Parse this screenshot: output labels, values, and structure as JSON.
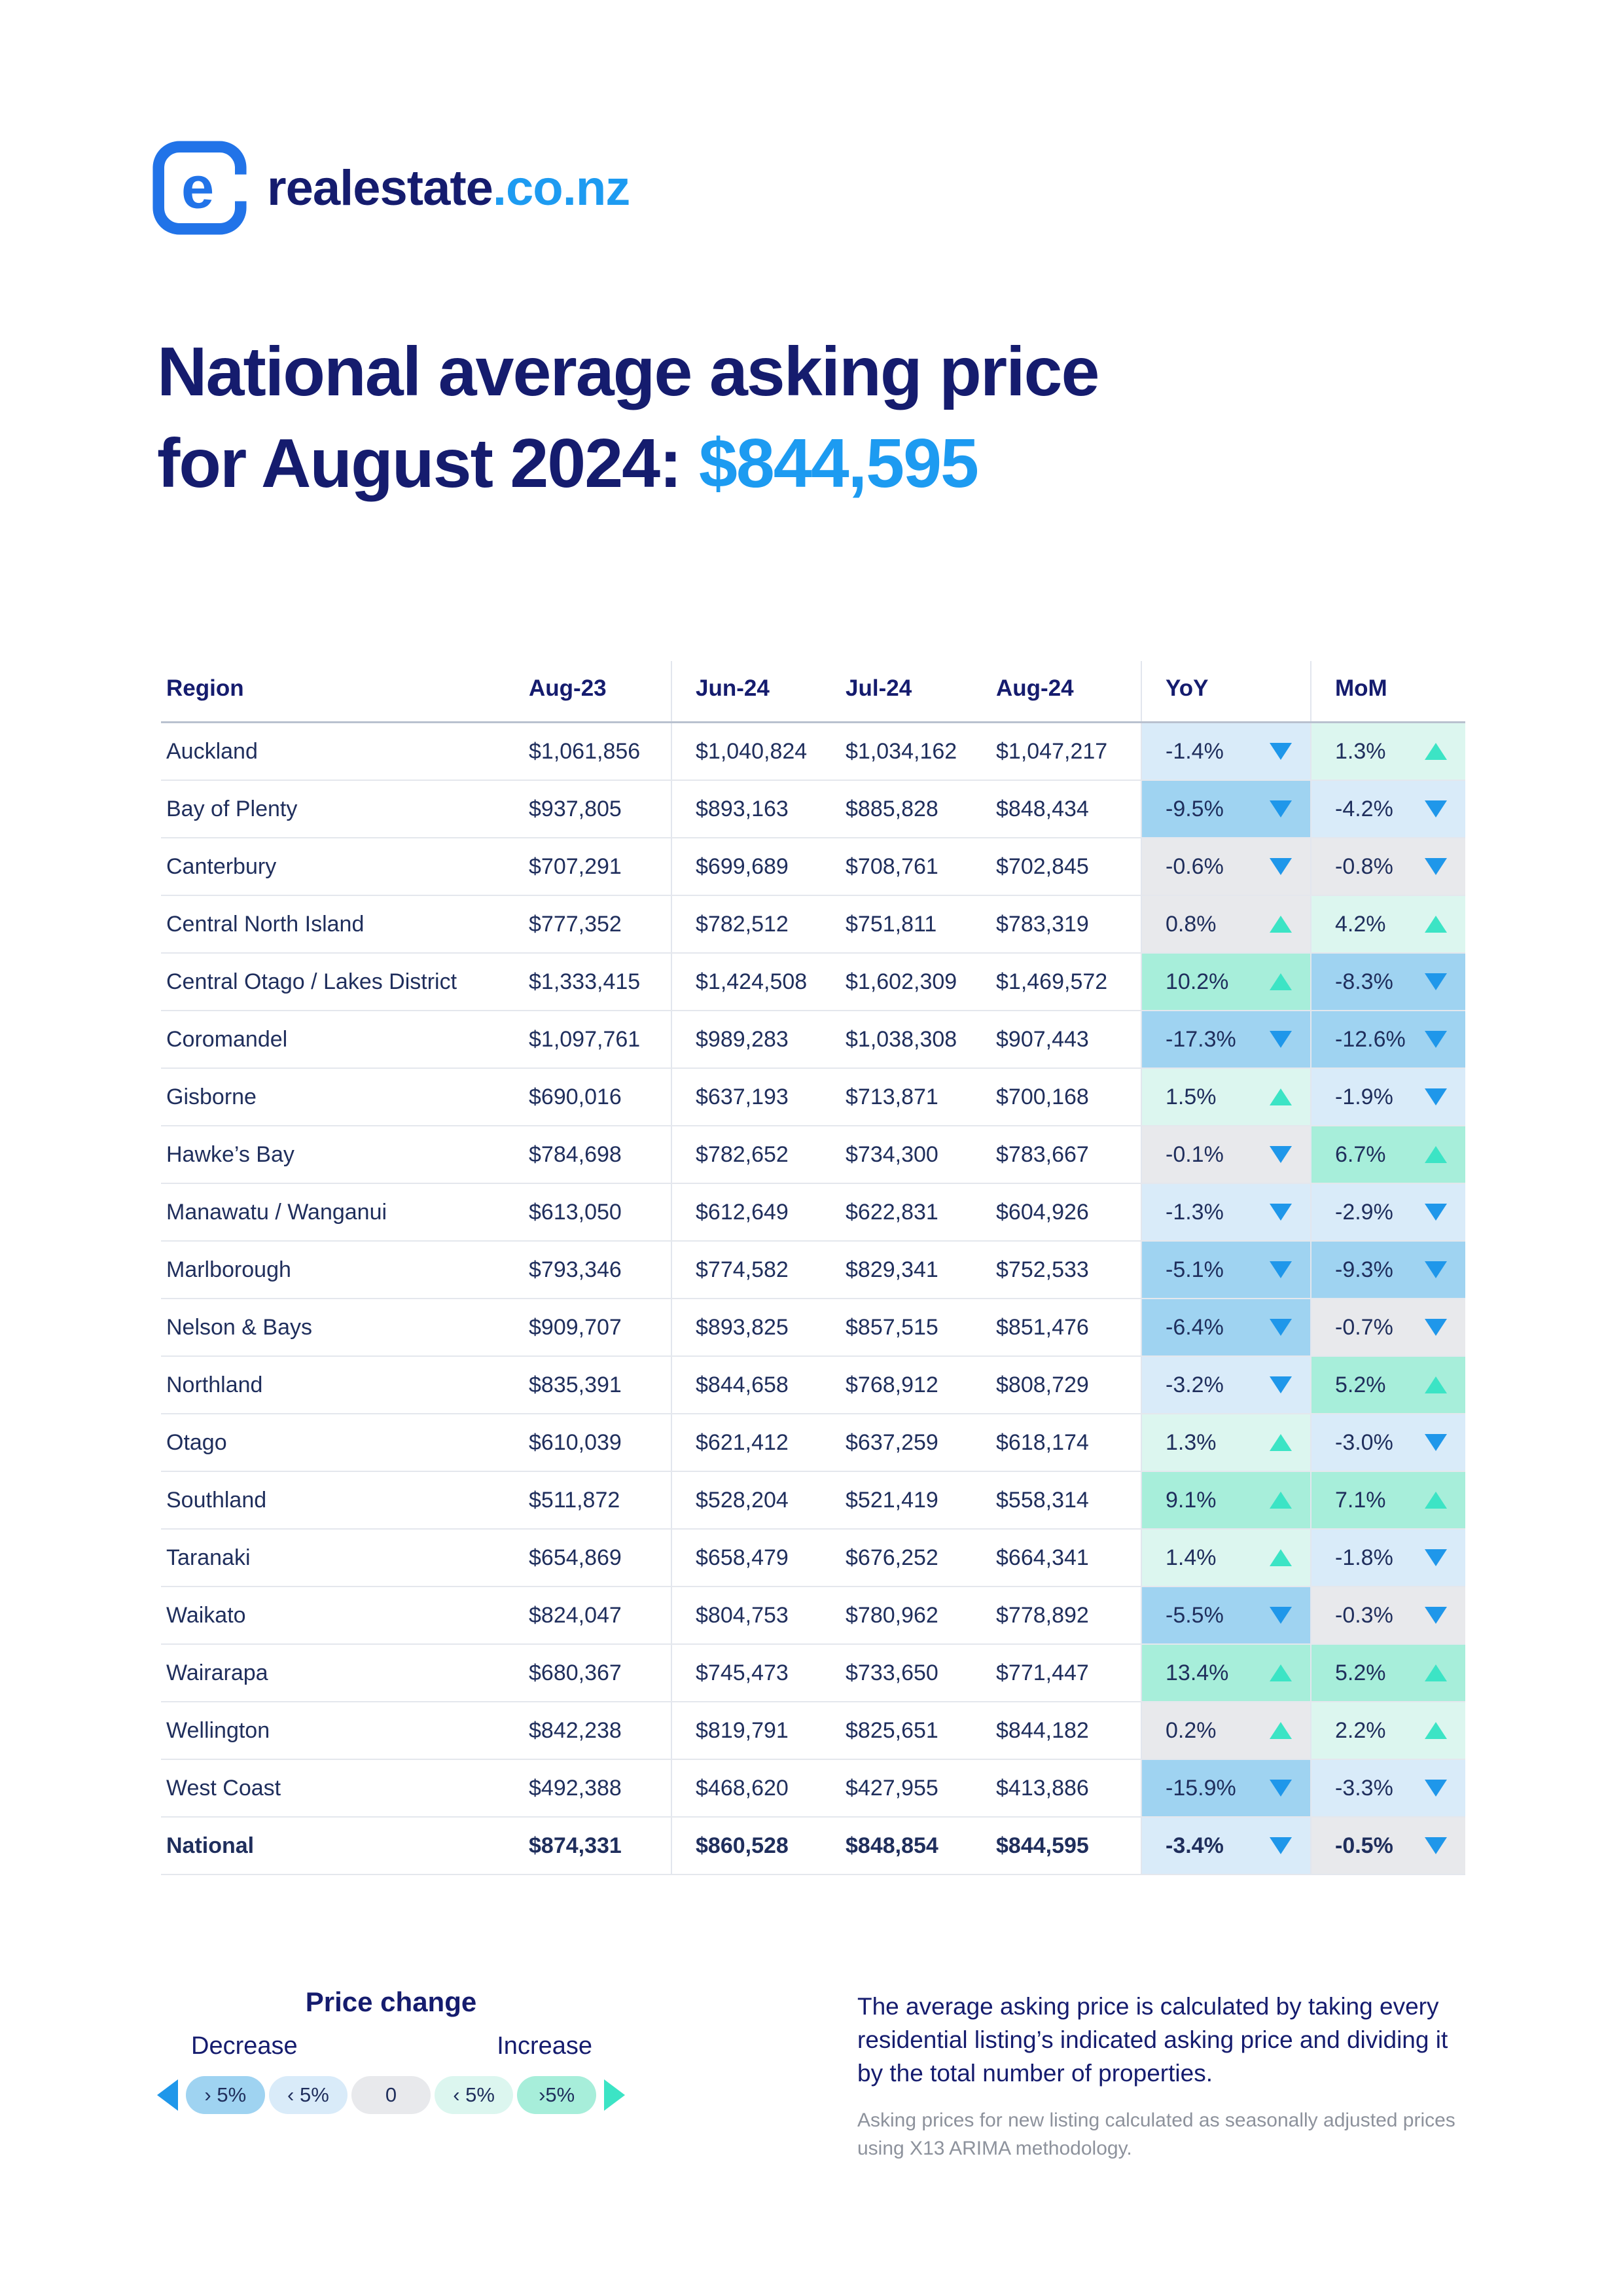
{
  "brand": {
    "name_main": "realestate",
    "name_suffix": ".co.nz"
  },
  "title": {
    "line1": "National average asking price",
    "line2_prefix": "for August 2024: ",
    "line2_price": "$844,595"
  },
  "table": {
    "columns": [
      "Region",
      "Aug-23",
      "Jun-24",
      "Jul-24",
      "Aug-24",
      "YoY",
      "MoM"
    ],
    "rows": [
      {
        "region": "Auckland",
        "aug23": "$1,061,856",
        "jun24": "$1,040,824",
        "jul24": "$1,034,162",
        "aug24": "$1,047,217",
        "yoy": {
          "value": "-1.4%",
          "direction": "down",
          "bucket": "dec-light"
        },
        "mom": {
          "value": "1.3%",
          "direction": "up",
          "bucket": "inc-light"
        }
      },
      {
        "region": "Bay of Plenty",
        "aug23": "$937,805",
        "jun24": "$893,163",
        "jul24": "$885,828",
        "aug24": "$848,434",
        "yoy": {
          "value": "-9.5%",
          "direction": "down",
          "bucket": "dec-strong"
        },
        "mom": {
          "value": "-4.2%",
          "direction": "down",
          "bucket": "dec-light"
        }
      },
      {
        "region": "Canterbury",
        "aug23": "$707,291",
        "jun24": "$699,689",
        "jul24": "$708,761",
        "aug24": "$702,845",
        "yoy": {
          "value": "-0.6%",
          "direction": "down",
          "bucket": "neutral"
        },
        "mom": {
          "value": "-0.8%",
          "direction": "down",
          "bucket": "neutral"
        }
      },
      {
        "region": "Central North Island",
        "aug23": "$777,352",
        "jun24": "$782,512",
        "jul24": "$751,811",
        "aug24": "$783,319",
        "yoy": {
          "value": "0.8%",
          "direction": "up",
          "bucket": "neutral"
        },
        "mom": {
          "value": "4.2%",
          "direction": "up",
          "bucket": "inc-light"
        }
      },
      {
        "region": "Central Otago / Lakes District",
        "aug23": "$1,333,415",
        "jun24": "$1,424,508",
        "jul24": "$1,602,309",
        "aug24": "$1,469,572",
        "yoy": {
          "value": "10.2%",
          "direction": "up",
          "bucket": "inc-strong"
        },
        "mom": {
          "value": "-8.3%",
          "direction": "down",
          "bucket": "dec-strong"
        }
      },
      {
        "region": "Coromandel",
        "aug23": "$1,097,761",
        "jun24": "$989,283",
        "jul24": "$1,038,308",
        "aug24": "$907,443",
        "yoy": {
          "value": "-17.3%",
          "direction": "down",
          "bucket": "dec-strong"
        },
        "mom": {
          "value": "-12.6%",
          "direction": "down",
          "bucket": "dec-strong"
        }
      },
      {
        "region": "Gisborne",
        "aug23": "$690,016",
        "jun24": "$637,193",
        "jul24": "$713,871",
        "aug24": "$700,168",
        "yoy": {
          "value": "1.5%",
          "direction": "up",
          "bucket": "inc-light"
        },
        "mom": {
          "value": "-1.9%",
          "direction": "down",
          "bucket": "dec-light"
        }
      },
      {
        "region": "Hawke’s Bay",
        "aug23": "$784,698",
        "jun24": "$782,652",
        "jul24": "$734,300",
        "aug24": "$783,667",
        "yoy": {
          "value": "-0.1%",
          "direction": "down",
          "bucket": "neutral"
        },
        "mom": {
          "value": "6.7%",
          "direction": "up",
          "bucket": "inc-strong"
        }
      },
      {
        "region": "Manawatu / Wanganui",
        "aug23": "$613,050",
        "jun24": "$612,649",
        "jul24": "$622,831",
        "aug24": "$604,926",
        "yoy": {
          "value": "-1.3%",
          "direction": "down",
          "bucket": "dec-light"
        },
        "mom": {
          "value": "-2.9%",
          "direction": "down",
          "bucket": "dec-light"
        }
      },
      {
        "region": "Marlborough",
        "aug23": "$793,346",
        "jun24": "$774,582",
        "jul24": "$829,341",
        "aug24": "$752,533",
        "yoy": {
          "value": "-5.1%",
          "direction": "down",
          "bucket": "dec-strong"
        },
        "mom": {
          "value": "-9.3%",
          "direction": "down",
          "bucket": "dec-strong"
        }
      },
      {
        "region": "Nelson & Bays",
        "aug23": "$909,707",
        "jun24": "$893,825",
        "jul24": "$857,515",
        "aug24": "$851,476",
        "yoy": {
          "value": "-6.4%",
          "direction": "down",
          "bucket": "dec-strong"
        },
        "mom": {
          "value": "-0.7%",
          "direction": "down",
          "bucket": "neutral"
        }
      },
      {
        "region": "Northland",
        "aug23": "$835,391",
        "jun24": "$844,658",
        "jul24": "$768,912",
        "aug24": "$808,729",
        "yoy": {
          "value": "-3.2%",
          "direction": "down",
          "bucket": "dec-light"
        },
        "mom": {
          "value": "5.2%",
          "direction": "up",
          "bucket": "inc-strong"
        }
      },
      {
        "region": "Otago",
        "aug23": "$610,039",
        "jun24": "$621,412",
        "jul24": "$637,259",
        "aug24": "$618,174",
        "yoy": {
          "value": "1.3%",
          "direction": "up",
          "bucket": "inc-light"
        },
        "mom": {
          "value": "-3.0%",
          "direction": "down",
          "bucket": "dec-light"
        }
      },
      {
        "region": "Southland",
        "aug23": "$511,872",
        "jun24": "$528,204",
        "jul24": "$521,419",
        "aug24": "$558,314",
        "yoy": {
          "value": "9.1%",
          "direction": "up",
          "bucket": "inc-strong"
        },
        "mom": {
          "value": "7.1%",
          "direction": "up",
          "bucket": "inc-strong"
        }
      },
      {
        "region": "Taranaki",
        "aug23": "$654,869",
        "jun24": "$658,479",
        "jul24": "$676,252",
        "aug24": "$664,341",
        "yoy": {
          "value": "1.4%",
          "direction": "up",
          "bucket": "inc-light"
        },
        "mom": {
          "value": "-1.8%",
          "direction": "down",
          "bucket": "dec-light"
        }
      },
      {
        "region": "Waikato",
        "aug23": "$824,047",
        "jun24": "$804,753",
        "jul24": "$780,962",
        "aug24": "$778,892",
        "yoy": {
          "value": "-5.5%",
          "direction": "down",
          "bucket": "dec-strong"
        },
        "mom": {
          "value": "-0.3%",
          "direction": "down",
          "bucket": "neutral"
        }
      },
      {
        "region": "Wairarapa",
        "aug23": "$680,367",
        "jun24": "$745,473",
        "jul24": "$733,650",
        "aug24": "$771,447",
        "yoy": {
          "value": "13.4%",
          "direction": "up",
          "bucket": "inc-strong"
        },
        "mom": {
          "value": "5.2%",
          "direction": "up",
          "bucket": "inc-strong"
        }
      },
      {
        "region": "Wellington",
        "aug23": "$842,238",
        "jun24": "$819,791",
        "jul24": "$825,651",
        "aug24": "$844,182",
        "yoy": {
          "value": "0.2%",
          "direction": "up",
          "bucket": "neutral"
        },
        "mom": {
          "value": "2.2%",
          "direction": "up",
          "bucket": "inc-light"
        }
      },
      {
        "region": "West Coast",
        "aug23": "$492,388",
        "jun24": "$468,620",
        "jul24": "$427,955",
        "aug24": "$413,886",
        "yoy": {
          "value": "-15.9%",
          "direction": "down",
          "bucket": "dec-strong"
        },
        "mom": {
          "value": "-3.3%",
          "direction": "down",
          "bucket": "dec-light"
        }
      },
      {
        "region": "National",
        "aug23": "$874,331",
        "jun24": "$860,528",
        "jul24": "$848,854",
        "aug24": "$844,595",
        "emphasis": true,
        "yoy": {
          "value": "-3.4%",
          "direction": "down",
          "bucket": "dec-light"
        },
        "mom": {
          "value": "-0.5%",
          "direction": "down",
          "bucket": "neutral"
        }
      }
    ]
  },
  "legend": {
    "title": "Price change",
    "decrease_label": "Decrease",
    "increase_label": "Increase",
    "pills": [
      {
        "label": "› 5%",
        "bucket": "dec-strong"
      },
      {
        "label": "‹ 5%",
        "bucket": "dec-light"
      },
      {
        "label": "0",
        "bucket": "neutral"
      },
      {
        "label": "‹ 5%",
        "bucket": "inc-light"
      },
      {
        "label": "›5%",
        "bucket": "inc-strong"
      }
    ]
  },
  "notes": {
    "main": "The average asking price is calculated by taking every residential listing’s indicated asking price and dividing it by the total number of properties.",
    "sub": "Asking prices for new listing calculated as seasonally adjusted prices using X13 ARIMA methodology."
  },
  "icons": {
    "down_triangle": "down-triangle-icon",
    "up_triangle": "up-triangle-icon",
    "decrease_arrow": "decrease-arrow-icon",
    "increase_arrow": "increase-arrow-icon",
    "logo": "realestate-logo-icon"
  },
  "colors": {
    "navy": "#1F2E5C",
    "title-navy": "#151C6E",
    "accent-blue": "#1D9BF1",
    "logo-blue": "#2173E8",
    "tri-down": "#1F97EA",
    "tri-up": "#3CE4C5",
    "dec-strong": "#9FD3F1",
    "dec-light": "#D9EBF9",
    "neutral": "#E8E9EC",
    "inc-light": "#DCF6EF",
    "inc-strong": "#A7EEDA",
    "row-line": "#E4E7ED",
    "head-line": "#B9C1CF",
    "v-line": "#E2E6EE",
    "muted-gray": "#8D929C"
  }
}
